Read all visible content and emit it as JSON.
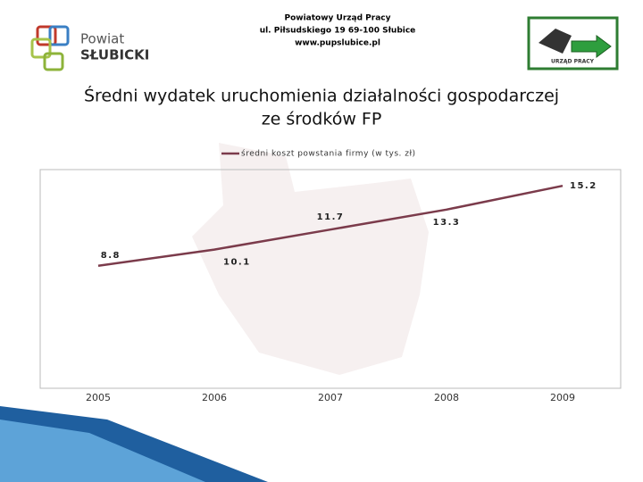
{
  "header": {
    "logo_top": "Powiat",
    "logo_bottom": "SŁUBICKI",
    "office_lines": [
      "Powiatowy Urząd Pracy",
      "ul. Piłsudskiego 19  69-100 Słubice",
      "www.pupslubice.pl"
    ],
    "badge": "URZĄD PRACY"
  },
  "chart_data": {
    "type": "line",
    "title_lines": [
      "Średni wydatek uruchomienia działalności gospodarczej",
      "ze środków FP"
    ],
    "categories": [
      "2005",
      "2006",
      "2007",
      "2008",
      "2009"
    ],
    "series": [
      {
        "name": "średni koszt powstania firmy (w tys. zł)",
        "color": "#7b3b4b",
        "values": [
          8.8,
          10.1,
          11.7,
          13.3,
          15.2
        ]
      }
    ],
    "ylim": [
      -1,
      16.5
    ],
    "grid": false
  }
}
